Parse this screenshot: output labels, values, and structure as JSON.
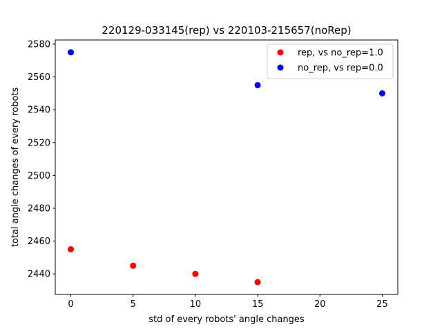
{
  "chart_data": {
    "type": "scatter",
    "title": "220129-033145(rep) vs 220103-215657(noRep)",
    "xlabel": "std of every robots' angle changes",
    "ylabel": "total angle changes of every robots",
    "xlim": [
      -1.25,
      26.25
    ],
    "ylim": [
      2427.5,
      2582.5
    ],
    "xticks": [
      0,
      5,
      10,
      15,
      20,
      25
    ],
    "yticks": [
      2440,
      2460,
      2480,
      2500,
      2520,
      2540,
      2560,
      2580
    ],
    "grid": false,
    "legend_position": "top-right",
    "series": [
      {
        "name": "rep, vs no_rep=1.0",
        "color": "#ff0000",
        "points": [
          [
            0,
            2455
          ],
          [
            5,
            2445
          ],
          [
            10,
            2440
          ],
          [
            15,
            2435
          ]
        ]
      },
      {
        "name": "no_rep, vs rep=0.0",
        "color": "#0000ff",
        "points": [
          [
            0,
            2575
          ],
          [
            15,
            2555
          ],
          [
            25,
            2550
          ]
        ]
      }
    ]
  }
}
